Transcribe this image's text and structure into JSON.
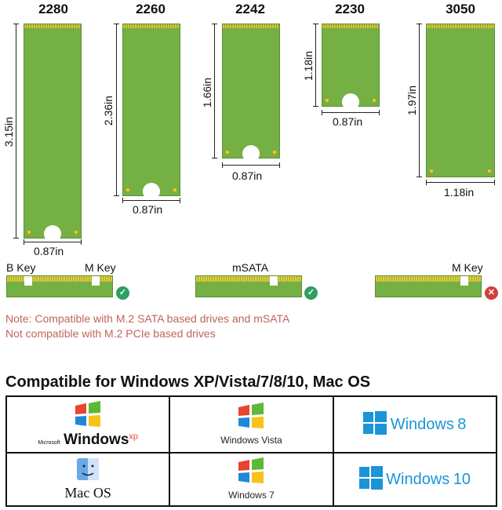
{
  "sizes": [
    {
      "code": "2280",
      "height": "3.15in",
      "width": "0.87in"
    },
    {
      "code": "2260",
      "height": "2.36in",
      "width": "0.87in"
    },
    {
      "code": "2242",
      "height": "1.66in",
      "width": "0.87in"
    },
    {
      "code": "2230",
      "height": "1.18in",
      "width": "0.87in"
    },
    {
      "code": "3050",
      "height": "1.97in",
      "width": "1.18in"
    }
  ],
  "keys": {
    "bm_left": "B Key",
    "bm_right": "M Key",
    "msata": "mSATA",
    "m_only": "M Key"
  },
  "note": {
    "line1": "Note: Compatible with M.2 SATA based drives and mSATA",
    "line2": "Not compatible with M.2 PCIe based drives"
  },
  "compat_title": "Compatible for Windows XP/Vista/7/8/10, Mac OS",
  "os": {
    "xp_small": "Microsoft",
    "xp_main": "Windows",
    "xp_sup": "xp",
    "vista": "Windows Vista",
    "w8_word": "Windows",
    "w8_num": "8",
    "mac": "Mac OS",
    "w7": "Windows 7",
    "w10_word": "Windows",
    "w10_num": "10"
  },
  "colors": {
    "card_green": "#74b043",
    "gold": "#e3cf3b",
    "check_green": "#2e9e61",
    "cross_red": "#d0403a",
    "note_red": "#c0655a",
    "win_blue": "#1b94d8"
  },
  "icons": {
    "ok": "check-circle-icon",
    "no": "cross-circle-icon"
  }
}
